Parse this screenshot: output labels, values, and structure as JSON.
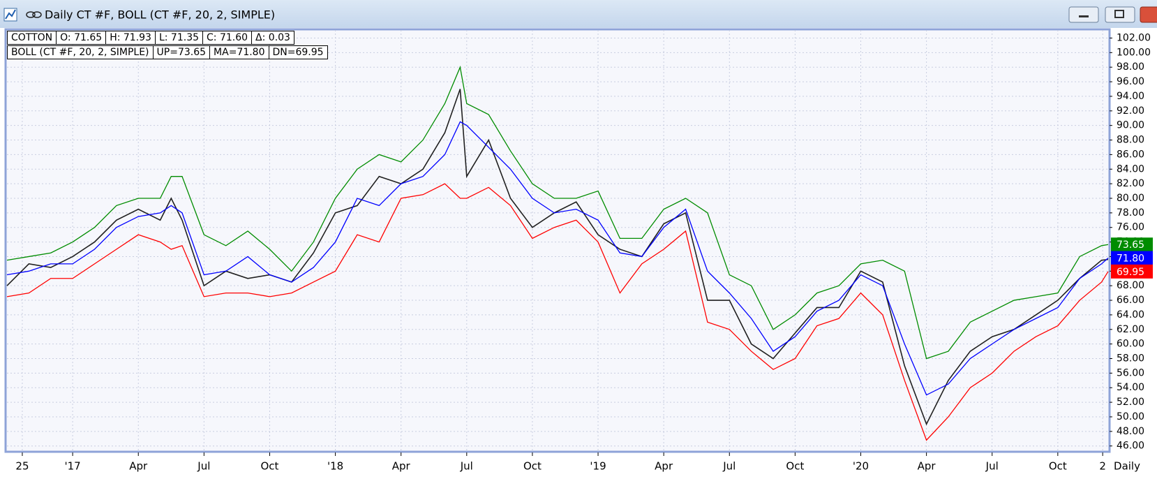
{
  "chart_data": {
    "type": "line",
    "title": "Daily CT #F, BOLL (CT #F, 20, 2, SIMPLE)",
    "info": [
      "COTTON",
      "O: 71.65",
      "H: 71.93",
      "L: 71.35",
      "C: 71.60",
      "Δ: 0.03"
    ],
    "indicator": [
      "BOLL (CT #F, 20, 2, SIMPLE)",
      "UP=73.65",
      "MA=71.80",
      "DN=69.95"
    ],
    "period_label": "Daily",
    "x": [
      -3,
      -2,
      -1,
      0,
      1,
      2,
      3,
      4,
      4.5,
      5,
      6,
      7,
      8,
      9,
      10,
      11,
      12,
      13,
      14,
      15,
      16,
      17,
      17.7,
      18,
      19,
      20,
      21,
      22,
      23,
      24,
      25,
      26,
      27,
      28,
      29,
      30,
      31,
      32,
      33,
      34,
      35,
      36,
      37,
      38,
      39,
      40,
      41,
      42,
      43,
      44,
      45,
      46,
      47,
      47.3
    ],
    "series": [
      {
        "color": "#202020",
        "values": [
          68,
          71,
          70.5,
          72,
          74,
          77,
          78.5,
          77,
          80,
          77,
          68,
          70,
          69,
          69.5,
          68.5,
          72.5,
          78,
          79,
          83,
          82,
          84,
          89,
          95,
          83,
          88,
          80,
          76,
          78,
          79.5,
          75,
          73,
          72,
          76.5,
          78,
          66,
          66,
          60,
          58,
          61.5,
          65,
          65,
          70,
          68.5,
          57,
          49,
          55,
          59,
          61,
          62,
          64,
          66,
          69,
          71.5,
          71.6
        ]
      },
      {
        "color": "#008c00",
        "last_label": "73.65",
        "values": [
          71.5,
          72,
          72.5,
          74,
          76,
          79,
          80,
          80,
          83,
          83,
          75,
          73.5,
          75.5,
          73,
          70,
          74,
          80,
          84,
          86,
          85,
          88,
          93,
          98,
          93,
          91.5,
          86.5,
          82,
          80,
          80,
          81,
          74.5,
          74.5,
          78.5,
          80,
          78,
          69.5,
          68,
          62,
          64,
          67,
          68,
          71,
          71.5,
          70,
          58,
          59,
          63,
          64.5,
          66,
          66.5,
          67,
          72,
          73.5,
          73.65
        ]
      },
      {
        "color": "#0000ff",
        "last_label": "71.80",
        "values": [
          69.5,
          70,
          71,
          71,
          73,
          76,
          77.5,
          78,
          79,
          78,
          69.5,
          70,
          72,
          69.5,
          68.5,
          70.5,
          74,
          80,
          79,
          82,
          83,
          86,
          90.5,
          90,
          87,
          84,
          80,
          78,
          78.5,
          77,
          72.5,
          72,
          76,
          78.5,
          70,
          67,
          63.5,
          59,
          61,
          64.5,
          66,
          69.5,
          68,
          60,
          53,
          54.5,
          58,
          60,
          62,
          63.5,
          65,
          69,
          71,
          71.8
        ]
      },
      {
        "color": "#ff0000",
        "last_label": "69.95",
        "values": [
          66.5,
          67,
          69,
          69,
          71,
          73,
          75,
          74,
          73,
          73.5,
          66.5,
          67,
          67,
          66.5,
          67,
          68.5,
          70,
          75,
          74,
          80,
          80.5,
          82,
          80,
          80,
          81.5,
          79,
          74.5,
          76,
          77,
          74,
          67,
          71,
          73,
          75.5,
          63,
          62,
          59,
          56.5,
          58,
          62.5,
          63.5,
          67,
          64,
          55,
          46.8,
          50,
          54,
          56,
          59,
          61,
          62.5,
          66,
          68.5,
          69.95
        ]
      }
    ],
    "xlim": [
      -3,
      47.3
    ],
    "xticks": [
      {
        "value": -2.3,
        "label": "25"
      },
      {
        "value": 0,
        "label": "'17"
      },
      {
        "value": 3,
        "label": "Apr"
      },
      {
        "value": 6,
        "label": "Jul"
      },
      {
        "value": 9,
        "label": "Oct"
      },
      {
        "value": 12,
        "label": "'18"
      },
      {
        "value": 15,
        "label": "Apr"
      },
      {
        "value": 18,
        "label": "Jul"
      },
      {
        "value": 21,
        "label": "Oct"
      },
      {
        "value": 24,
        "label": "'19"
      },
      {
        "value": 27,
        "label": "Apr"
      },
      {
        "value": 30,
        "label": "Jul"
      },
      {
        "value": 33,
        "label": "Oct"
      },
      {
        "value": 36,
        "label": "'20"
      },
      {
        "value": 39,
        "label": "Apr"
      },
      {
        "value": 42,
        "label": "Jul"
      },
      {
        "value": 45,
        "label": "Oct"
      },
      {
        "value": 47.05,
        "label": "2"
      }
    ],
    "ylim": [
      45.3,
      103.1
    ],
    "yticks": [
      {
        "value": 46,
        "label": "46.00"
      },
      {
        "value": 48,
        "label": "48.00"
      },
      {
        "value": 50,
        "label": "50.00"
      },
      {
        "value": 52,
        "label": "52.00"
      },
      {
        "value": 54,
        "label": "54.00"
      },
      {
        "value": 56,
        "label": "56.00"
      },
      {
        "value": 58,
        "label": "58.00"
      },
      {
        "value": 60,
        "label": "60.00"
      },
      {
        "value": 62,
        "label": "62.00"
      },
      {
        "value": 64,
        "label": "64.00"
      },
      {
        "value": 66,
        "label": "66.00"
      },
      {
        "value": 68,
        "label": "68.00"
      },
      {
        "value": 70,
        "label": "70.00"
      },
      {
        "value": 72,
        "label": "72.00"
      },
      {
        "value": 74,
        "label": "74.00"
      },
      {
        "value": 76,
        "label": "76.00"
      },
      {
        "value": 78,
        "label": "78.00"
      },
      {
        "value": 80,
        "label": "80.00"
      },
      {
        "value": 82,
        "label": "82.00"
      },
      {
        "value": 84,
        "label": "84.00"
      },
      {
        "value": 86,
        "label": "86.00"
      },
      {
        "value": 88,
        "label": "88.00"
      },
      {
        "value": 90,
        "label": "90.00"
      },
      {
        "value": 92,
        "label": "92.00"
      },
      {
        "value": 94,
        "label": "94.00"
      },
      {
        "value": 96,
        "label": "96.00"
      },
      {
        "value": 98,
        "label": "98.00"
      },
      {
        "value": 100,
        "label": "100.00"
      },
      {
        "value": 102,
        "label": "102.00"
      }
    ],
    "grid": true
  }
}
